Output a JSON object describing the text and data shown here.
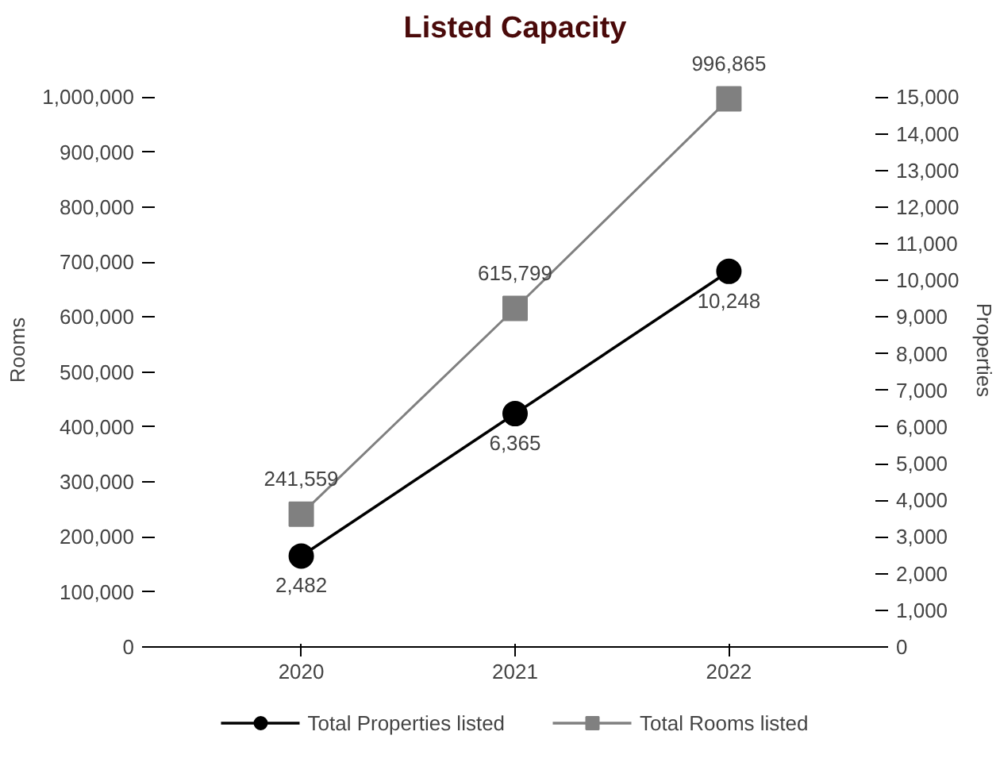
{
  "chart_data": {
    "type": "line",
    "title": "Listed Capacity",
    "ylabel": "Rooms",
    "y2label": "Properties",
    "categories": [
      "2020",
      "2021",
      "2022"
    ],
    "series": [
      {
        "name": "Total Properties listed",
        "color": "#000000",
        "values": [
          2482,
          6365,
          10248
        ],
        "value_labels": [
          "2,482",
          "6,365",
          "10,248"
        ],
        "axis": "y2",
        "marker": "circle"
      },
      {
        "name": "Total Rooms listed",
        "color": "#808080",
        "values": [
          241559,
          615799,
          996865
        ],
        "value_labels": [
          "241,559",
          "615,799",
          "996,865"
        ],
        "marker": "square"
      }
    ],
    "ylim": [
      0,
      1000000
    ],
    "yticks": [
      0,
      {
        "value": 100000,
        "label": "100,000"
      },
      {
        "value": 200000,
        "label": "200,000"
      },
      {
        "value": 300000,
        "label": "300,000"
      },
      {
        "value": 400000,
        "label": "400,000"
      },
      {
        "value": 500000,
        "label": "500,000"
      },
      {
        "value": 600000,
        "label": "600,000"
      },
      {
        "value": 700000,
        "label": "700,000"
      },
      {
        "value": 800000,
        "label": "800,000"
      },
      {
        "value": 900000,
        "label": "900,000"
      },
      {
        "value": 1000000,
        "label": "1,000,000"
      }
    ],
    "y2lim": [
      0,
      15000
    ],
    "y2ticks": [
      0,
      {
        "value": 1000,
        "label": "1,000"
      },
      {
        "value": 2000,
        "label": "2,000"
      },
      {
        "value": 3000,
        "label": "3,000"
      },
      {
        "value": 4000,
        "label": "4,000"
      },
      {
        "value": 5000,
        "label": "5,000"
      },
      {
        "value": 6000,
        "label": "6,000"
      },
      {
        "value": 7000,
        "label": "7,000"
      },
      {
        "value": 8000,
        "label": "8,000"
      },
      {
        "value": 9000,
        "label": "9,000"
      },
      {
        "value": 10000,
        "label": "10,000"
      },
      {
        "value": 11000,
        "label": "11,000"
      },
      {
        "value": 12000,
        "label": "12,000"
      },
      {
        "value": 13000,
        "label": "13,000"
      },
      {
        "value": 14000,
        "label": "14,000"
      },
      {
        "value": 15000,
        "label": "15,000"
      }
    ],
    "grid": false,
    "legend": "bottom",
    "line_style": "solid"
  }
}
